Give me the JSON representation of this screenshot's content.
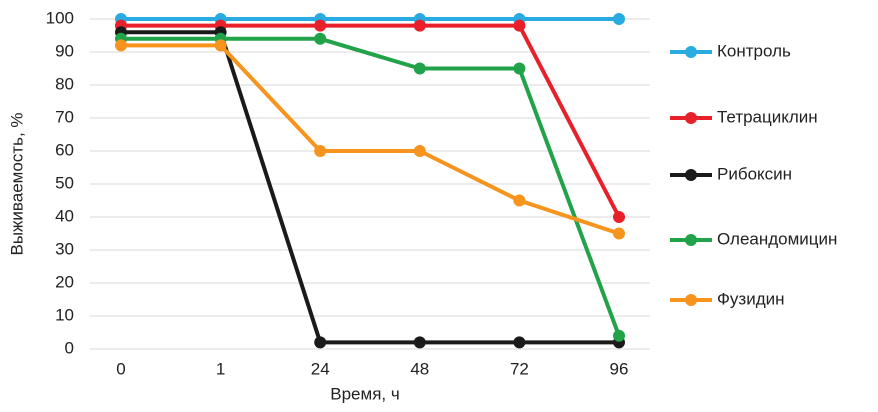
{
  "chart_data": {
    "type": "line",
    "x_label": "Время, ч",
    "y_label": "Выживаемость, %",
    "categories": [
      "0",
      "1",
      "24",
      "48",
      "72",
      "96"
    ],
    "series": [
      {
        "name": "Контроль",
        "color": "#29abe2",
        "values": [
          100,
          100,
          100,
          100,
          100,
          100
        ]
      },
      {
        "name": "Тетрациклин",
        "color": "#e8202a",
        "values": [
          98,
          98,
          98,
          98,
          98,
          40
        ]
      },
      {
        "name": "Рибоксин",
        "color": "#1a1a1a",
        "values": [
          96,
          96,
          2,
          2,
          2,
          2
        ]
      },
      {
        "name": "Олеандомицин",
        "color": "#22a34a",
        "values": [
          94,
          94,
          94,
          85,
          85,
          4
        ]
      },
      {
        "name": "Фузидин",
        "color": "#f7941d",
        "values": [
          92,
          92,
          60,
          60,
          45,
          35
        ]
      }
    ],
    "ylim": [
      0,
      100
    ],
    "yticks": [
      0,
      10,
      20,
      30,
      40,
      50,
      60,
      70,
      80,
      90,
      100
    ],
    "grid": true
  }
}
